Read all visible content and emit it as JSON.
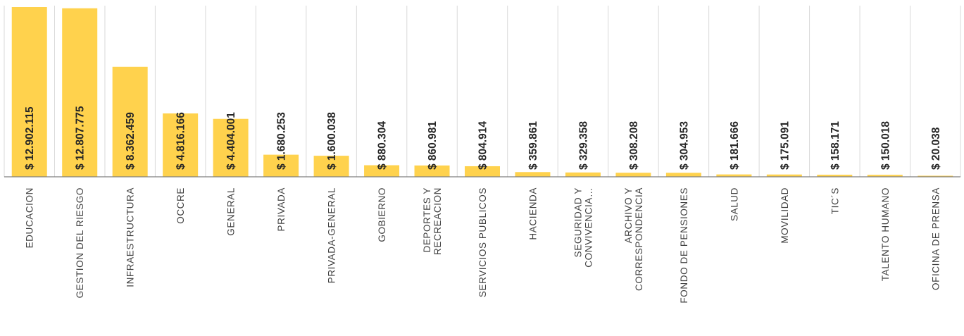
{
  "chart_data": {
    "type": "bar",
    "orientation": "vertical",
    "title": "",
    "xlabel": "",
    "ylabel": "",
    "ylim": [
      0,
      12902115
    ],
    "grid": true,
    "legend": "none",
    "bar_color": "#ffd24d",
    "categories": [
      [
        "EDUCACION"
      ],
      [
        "GESTION DEL RIESGO"
      ],
      [
        "INFRAESTRUCTURA"
      ],
      [
        "OCCRE"
      ],
      [
        "GENERAL"
      ],
      [
        "PRIVADA"
      ],
      [
        "PRIVADA-GENERAL"
      ],
      [
        "GOBIERNO"
      ],
      [
        "DEPORTES Y",
        "RECREACION"
      ],
      [
        "SERVICIOS PUBLICOS"
      ],
      [
        "HACIENDA"
      ],
      [
        "SEGURIDAD Y",
        "CONVIVENCIA…"
      ],
      [
        "ARCHIVO Y",
        "CORRESPONDENCIA"
      ],
      [
        "FONDO DE PENSIONES"
      ],
      [
        "SALUD"
      ],
      [
        "MOVILIDAD"
      ],
      [
        "TIC´S"
      ],
      [
        "TALENTO HUMANO"
      ],
      [
        "OFICINA DE PRENSA"
      ]
    ],
    "values": [
      12902115,
      12807775,
      8362459,
      4816166,
      4404001,
      1680253,
      1600038,
      880304,
      860981,
      804914,
      359861,
      329358,
      308208,
      304953,
      181666,
      175091,
      158171,
      150018,
      20038
    ],
    "data_labels": [
      "$ 12.902.115",
      "$ 12.807.775",
      "$ 8.362.459",
      "$ 4.816.166",
      "$ 4.404.001",
      "$ 1.680.253",
      "$ 1.600.038",
      "$ 880.304",
      "$ 860.981",
      "$ 804.914",
      "$ 359.861",
      "$ 329.358",
      "$ 308.208",
      "$ 304.953",
      "$ 181.666",
      "$ 175.091",
      "$ 158.171",
      "$ 150.018",
      "$ 20.038"
    ]
  }
}
